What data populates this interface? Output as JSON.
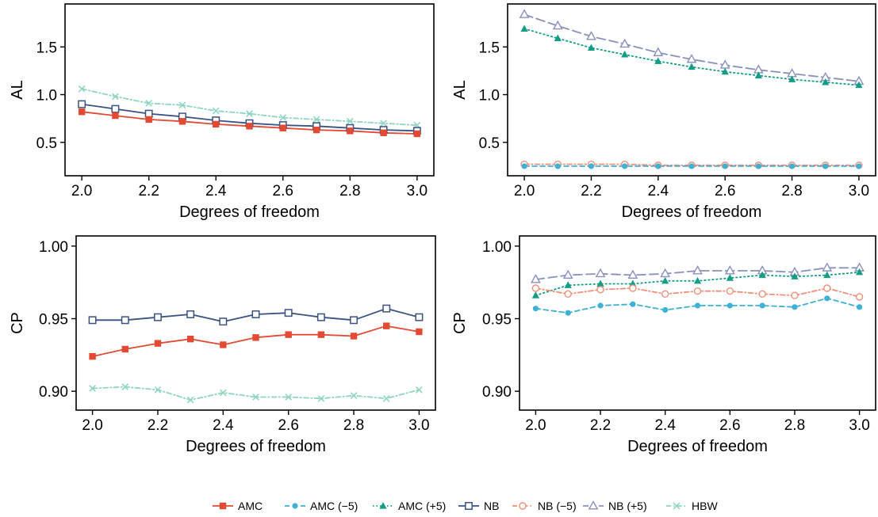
{
  "legend": {
    "position": "bottom",
    "entries": [
      "AMC",
      "AMC (−5)",
      "AMC (+5)",
      "NB",
      "NB (−5)",
      "NB (+5)",
      "HBW"
    ]
  },
  "series_styles": {
    "AMC": {
      "color": "#e24a33",
      "dash": "solid",
      "marker": "filled-square"
    },
    "AMC (-5)": {
      "color": "#3fb1d4",
      "dash": "dashed",
      "marker": "filled-circle"
    },
    "AMC (+5)": {
      "color": "#129e84",
      "dash": "dotted",
      "marker": "filled-triangle"
    },
    "NB": {
      "color": "#3a5282",
      "dash": "solid",
      "marker": "open-square"
    },
    "NB (-5)": {
      "color": "#f1907a",
      "dash": "dash-dot",
      "marker": "open-circle"
    },
    "NB (+5)": {
      "color": "#8a90bc",
      "dash": "long-dash",
      "marker": "open-triangle"
    },
    "HBW": {
      "color": "#8fd5c1",
      "dash": "dash-dot",
      "marker": "cross"
    }
  },
  "chart_data": [
    {
      "type": "line",
      "xlabel": "Degrees of freedom",
      "ylabel": "AL",
      "xlim": [
        1.95,
        3.05
      ],
      "ylim": [
        0.15,
        1.95
      ],
      "xticks": [
        "2.0",
        "2.2",
        "2.4",
        "2.6",
        "2.8",
        "3.0"
      ],
      "yticks": [
        "0.5",
        "1.0",
        "1.5"
      ],
      "grid": false,
      "x": [
        2.0,
        2.1,
        2.2,
        2.3,
        2.4,
        2.5,
        2.6,
        2.7,
        2.8,
        2.9,
        3.0
      ],
      "series": [
        {
          "name": "HBW",
          "values": [
            1.06,
            0.98,
            0.91,
            0.89,
            0.83,
            0.8,
            0.76,
            0.74,
            0.72,
            0.7,
            0.68
          ]
        },
        {
          "name": "NB",
          "values": [
            0.9,
            0.85,
            0.8,
            0.77,
            0.73,
            0.7,
            0.68,
            0.67,
            0.65,
            0.63,
            0.62
          ]
        },
        {
          "name": "AMC",
          "values": [
            0.82,
            0.78,
            0.74,
            0.72,
            0.69,
            0.67,
            0.65,
            0.63,
            0.62,
            0.6,
            0.59
          ]
        }
      ]
    },
    {
      "type": "line",
      "xlabel": "Degrees of freedom",
      "ylabel": "AL",
      "xlim": [
        1.95,
        3.05
      ],
      "ylim": [
        0.15,
        1.95
      ],
      "xticks": [
        "2.0",
        "2.2",
        "2.4",
        "2.6",
        "2.8",
        "3.0"
      ],
      "yticks": [
        "0.5",
        "1.0",
        "1.5"
      ],
      "grid": false,
      "x": [
        2.0,
        2.1,
        2.2,
        2.3,
        2.4,
        2.5,
        2.6,
        2.7,
        2.8,
        2.9,
        3.0
      ],
      "series": [
        {
          "name": "NB (+5)",
          "values": [
            1.84,
            1.72,
            1.61,
            1.53,
            1.44,
            1.37,
            1.31,
            1.26,
            1.22,
            1.18,
            1.14
          ]
        },
        {
          "name": "AMC (+5)",
          "values": [
            1.69,
            1.59,
            1.49,
            1.42,
            1.35,
            1.29,
            1.24,
            1.2,
            1.16,
            1.13,
            1.1
          ]
        },
        {
          "name": "NB (-5)",
          "values": [
            0.27,
            0.27,
            0.27,
            0.27,
            0.26,
            0.26,
            0.26,
            0.26,
            0.26,
            0.26,
            0.26
          ]
        },
        {
          "name": "AMC (-5)",
          "values": [
            0.25,
            0.25,
            0.25,
            0.25,
            0.25,
            0.25,
            0.25,
            0.25,
            0.25,
            0.25,
            0.25
          ]
        }
      ]
    },
    {
      "type": "line",
      "xlabel": "Degrees of freedom",
      "ylabel": "CP",
      "xlim": [
        1.95,
        3.05
      ],
      "ylim": [
        0.887,
        1.007
      ],
      "xticks": [
        "2.0",
        "2.2",
        "2.4",
        "2.6",
        "2.8",
        "3.0"
      ],
      "yticks": [
        "0.90",
        "0.95",
        "1.00"
      ],
      "grid": false,
      "x": [
        2.0,
        2.1,
        2.2,
        2.3,
        2.4,
        2.5,
        2.6,
        2.7,
        2.8,
        2.9,
        3.0
      ],
      "series": [
        {
          "name": "NB",
          "values": [
            0.949,
            0.949,
            0.951,
            0.953,
            0.948,
            0.953,
            0.954,
            0.951,
            0.949,
            0.957,
            0.951
          ]
        },
        {
          "name": "AMC",
          "values": [
            0.924,
            0.929,
            0.933,
            0.936,
            0.932,
            0.937,
            0.939,
            0.939,
            0.938,
            0.945,
            0.941
          ]
        },
        {
          "name": "HBW",
          "values": [
            0.902,
            0.903,
            0.901,
            0.894,
            0.899,
            0.896,
            0.896,
            0.895,
            0.897,
            0.895,
            0.901
          ]
        }
      ]
    },
    {
      "type": "line",
      "xlabel": "Degrees of freedom",
      "ylabel": "CP",
      "xlim": [
        1.95,
        3.05
      ],
      "ylim": [
        0.887,
        1.007
      ],
      "xticks": [
        "2.0",
        "2.2",
        "2.4",
        "2.6",
        "2.8",
        "3.0"
      ],
      "yticks": [
        "0.90",
        "0.95",
        "1.00"
      ],
      "grid": false,
      "x": [
        2.0,
        2.1,
        2.2,
        2.3,
        2.4,
        2.5,
        2.6,
        2.7,
        2.8,
        2.9,
        3.0
      ],
      "series": [
        {
          "name": "NB (+5)",
          "values": [
            0.977,
            0.98,
            0.981,
            0.98,
            0.981,
            0.983,
            0.983,
            0.983,
            0.982,
            0.985,
            0.985
          ]
        },
        {
          "name": "AMC (+5)",
          "values": [
            0.966,
            0.973,
            0.974,
            0.974,
            0.976,
            0.976,
            0.978,
            0.98,
            0.979,
            0.98,
            0.982
          ]
        },
        {
          "name": "NB (-5)",
          "values": [
            0.971,
            0.967,
            0.97,
            0.971,
            0.967,
            0.969,
            0.969,
            0.967,
            0.966,
            0.971,
            0.965
          ]
        },
        {
          "name": "AMC (-5)",
          "values": [
            0.957,
            0.954,
            0.959,
            0.96,
            0.956,
            0.959,
            0.959,
            0.959,
            0.958,
            0.964,
            0.958
          ]
        }
      ]
    }
  ]
}
